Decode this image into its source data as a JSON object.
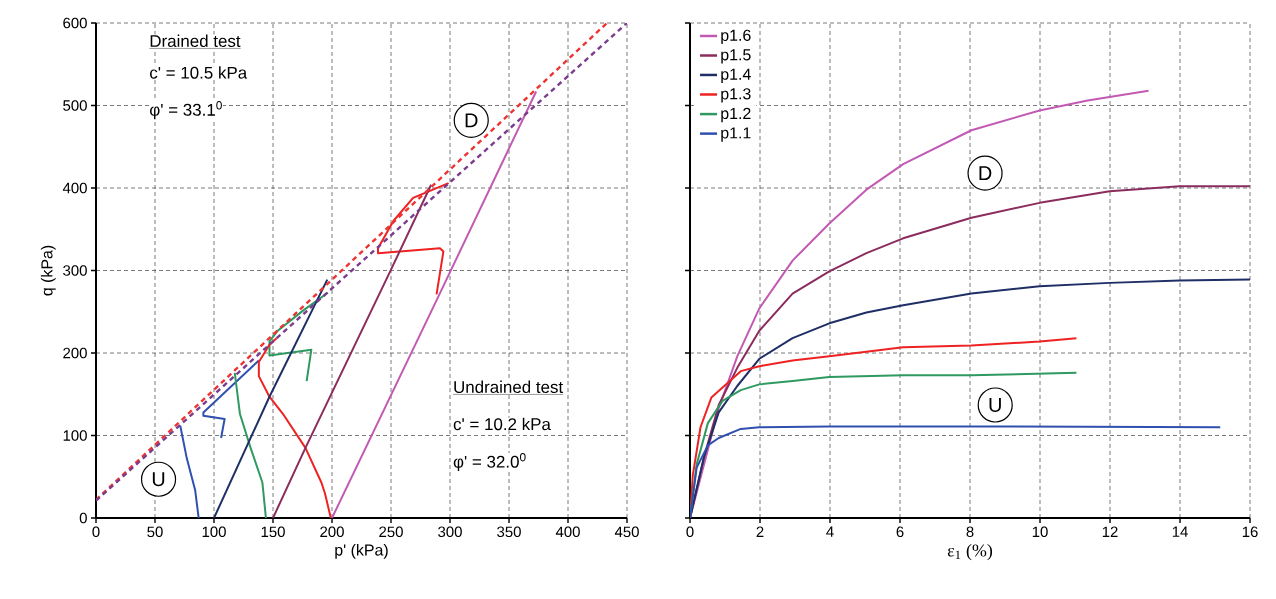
{
  "chart_data": [
    {
      "type": "line",
      "xlabel": "p' (kPa)",
      "ylabel": "q (kPa)",
      "xlim": [
        0,
        450
      ],
      "xticks": [
        0,
        50,
        100,
        150,
        200,
        250,
        300,
        350,
        400,
        450
      ],
      "ylim": [
        0,
        600
      ],
      "yticks": [
        0,
        100,
        200,
        300,
        400,
        500,
        600
      ],
      "grid": true,
      "marker": "none",
      "series": [
        {
          "color": "#3050b0",
          "x": [
            87,
            84,
            77,
            71.4
          ],
          "values": [
            0,
            34,
            72,
            112
          ]
        },
        {
          "color": "#3050b0",
          "x": [
            106,
            109,
            91,
            91,
            138
          ],
          "values": [
            97,
            120,
            124,
            128,
            191
          ]
        },
        {
          "color": "#2e9960",
          "x": [
            144,
            141,
            131,
            122,
            117.6
          ],
          "values": [
            0,
            43,
            85,
            126,
            176
          ]
        },
        {
          "color": "#2e9960",
          "x": [
            178.5,
            182.5,
            147,
            147,
            154,
            176,
            196.5
          ],
          "values": [
            166,
            204,
            197,
            214,
            227,
            252,
            273
          ]
        },
        {
          "color": "#ee2222",
          "x": [
            199,
            194,
            191,
            177.5,
            158.5,
            147,
            138,
            138,
            147,
            153
          ],
          "values": [
            0,
            30,
            43,
            85,
            126,
            147,
            172,
            189,
            210,
            218
          ]
        },
        {
          "color": "#ee2222",
          "x": [
            288.6,
            294.4,
            291.5,
            239,
            239,
            252,
            268.7,
            298.8
          ],
          "values": [
            271,
            323,
            327,
            321,
            327,
            360,
            388,
            406
          ]
        },
        {
          "color": "#1f2f66",
          "x": [
            100,
            147,
            196
          ],
          "values": [
            0,
            147,
            289
          ]
        },
        {
          "color": "#8b2c5e",
          "x": [
            150,
            177.5,
            249,
            284
          ],
          "values": [
            0,
            85,
            298,
            404
          ]
        },
        {
          "color": "#c25ab4",
          "x": [
            200,
            290,
            373
          ],
          "values": [
            0,
            268,
            517
          ]
        },
        {
          "color": "#ee3333",
          "line_style": "dashed",
          "x": [
            0,
            433
          ],
          "values": [
            22,
            600
          ]
        },
        {
          "color": "#7a3c8c",
          "line_style": "dashed",
          "x": [
            0,
            450
          ],
          "values": [
            21,
            600
          ]
        }
      ],
      "annotations": [
        "Drained test",
        "c' = 10.5 kPa",
        "φ' = 33.1$^{0}$",
        "Undrained test",
        "c' = 10.2 kPa",
        "φ' = 32.0$^{0}$",
        {
          "text": "D",
          "x": 318,
          "y": 482
        },
        {
          "text": "U",
          "x": 53,
          "y": 47
        }
      ]
    },
    {
      "type": "line",
      "xlabel": "ε$_{1}$ (%)",
      "xlim": [
        0,
        16
      ],
      "xticks": [
        0,
        2,
        4,
        6,
        8,
        10,
        12,
        14,
        16
      ],
      "ylim": [
        0,
        600
      ],
      "yticks": [
        0,
        100,
        200,
        300,
        400,
        500,
        600
      ],
      "tick_labels": "x",
      "grid": true,
      "legend": "top left",
      "marker": "none",
      "series": [
        {
          "name": "p1.6",
          "color": "#c25ab4",
          "x": [
            0,
            0.4,
            0.82,
            1.35,
            1.98,
            2.93,
            3.98,
            5.04,
            6.09,
            8.04,
            9.99,
            11.36,
            13.1
          ],
          "values": [
            0,
            65,
            133,
            196,
            254,
            312,
            357,
            398,
            429,
            470,
            494,
            506,
            518
          ]
        },
        {
          "name": "p1.5",
          "color": "#8b2c5e",
          "x": [
            0,
            0.4,
            0.82,
            1.35,
            1.98,
            2.93,
            3.98,
            5.04,
            6.09,
            8.04,
            9.99,
            11.99,
            13.99,
            16
          ],
          "values": [
            0,
            74,
            137,
            182,
            227,
            272,
            299,
            321,
            339,
            364,
            382,
            396,
            402,
            402
          ]
        },
        {
          "name": "p1.4",
          "color": "#1f2f66",
          "x": [
            0,
            0.4,
            0.82,
            1.35,
            1.98,
            2.93,
            3.98,
            5.04,
            6.09,
            8.04,
            9.99,
            11.99,
            13.99,
            16
          ],
          "values": [
            0,
            74,
            128,
            160,
            193,
            218,
            236,
            249,
            258,
            272,
            281,
            285,
            288,
            289
          ]
        },
        {
          "name": "p1.3",
          "color": "#ee2222",
          "x": [
            0,
            0.08,
            0.3,
            0.61,
            1.03,
            1.45,
            1.98,
            2.93,
            3.98,
            6.09,
            8.04,
            9.99,
            11.04
          ],
          "values": [
            0,
            52,
            110,
            146,
            162,
            178,
            184,
            191,
            196,
            207,
            209,
            214,
            218
          ]
        },
        {
          "name": "p1.2",
          "color": "#2e9960",
          "x": [
            0,
            0.19,
            0.51,
            0.93,
            1.45,
            1.98,
            2.93,
            3.98,
            6.09,
            8.04,
            11.04
          ],
          "values": [
            0,
            65,
            115,
            142,
            155,
            162,
            166,
            171,
            173,
            173,
            176
          ]
        },
        {
          "name": "p1.1",
          "color": "#3050b0",
          "x": [
            0,
            0.19,
            0.51,
            0.82,
            1.45,
            1.98,
            3.98,
            8.2,
            15.15
          ],
          "values": [
            0,
            61,
            88,
            97,
            108,
            110,
            111,
            111,
            110
          ]
        }
      ],
      "annotations": [
        {
          "text": "D",
          "x": 8.43,
          "y": 418
        },
        {
          "text": "U",
          "x": 8.72,
          "y": 137
        }
      ]
    }
  ]
}
